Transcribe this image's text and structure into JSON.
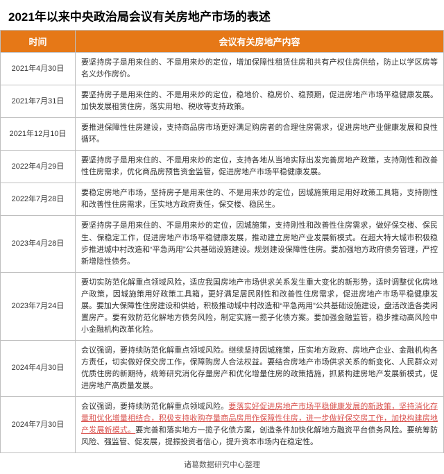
{
  "title": "2021年以来中央政治局会议有关房地产市场的表述",
  "headers": {
    "date": "时间",
    "content": "会议有关房地产内容"
  },
  "rows": [
    {
      "date": "2021年4月30日",
      "content": "要坚持房子是用来住的、不是用来炒的定位，增加保障性租赁住房和共有产权住房供给，防止以学区房等名义炒作房价。"
    },
    {
      "date": "2021年7月31日",
      "content": "要坚持房子是用来住的、不是用来炒的定位，稳地价、稳房价、稳预期，促进房地产市场平稳健康发展。加快发展租赁住房，落实用地、税收等支持政策。"
    },
    {
      "date": "2021年12月10日",
      "content": "要推进保障性住房建设，支持商品房市场更好满足购房者的合理住房需求，促进房地产业健康发展和良性循环。"
    },
    {
      "date": "2022年4月29日",
      "content": "要坚持房子是用来住的、不是用来炒的定位，支持各地从当地实际出发完善房地产政策，支持刚性和改善性住房需求，优化商品房预售资金监管，促进房地产市场平稳健康发展。"
    },
    {
      "date": "2022年7月28日",
      "content": "要稳定房地产市场，坚持房子是用来住的、不是用来炒的定位，因城施策用足用好政策工具箱，支持刚性和改善性住房需求，压实地方政府责任，保交楼、稳民生。"
    },
    {
      "date": "2023年4月28日",
      "content": "要坚持房子是用来住的、不是用来炒的定位，因城施策，支持刚性和改善性住房需求，做好保交楼、保民生、保稳定工作，促进房地产市场平稳健康发展，推动建立房地产业发展新模式。在超大特大城市积极稳步推进城中村改造和“平急两用”公共基础设施建设。规划建设保障性住房。要加强地方政府债务管理，严控新增隐性债务。"
    },
    {
      "date": "2023年7月24日",
      "content": "要切实防范化解重点领域风险，适应我国房地产市场供求关系发生重大变化的新形势，适时调整优化房地产政策，因城施策用好政策工具箱，更好满足居民刚性和改善性住房需求，促进房地产市场平稳健康发展。要加大保障性住房建设和供给，积极推动城中村改造和“平急两用”公共基础设施建设，盘活改造各类闲置房产。要有效防范化解地方债务风险，制定实施一揽子化债方案。要加强金融监管，稳步推动高风险中小金融机构改革化险。"
    },
    {
      "date": "2024年4月30日",
      "content": "会议强调，要持续防范化解重点领域风险。继续坚持因城施策，压实地方政府、房地产企业、金融机构各方责任，切实做好保交房工作，保障购房人合法权益。要结合房地产市场供求关系的新变化、人民群众对优质住房的新期待，统筹研究消化存量房产和优化增量住房的政策措施，抓紧构建房地产发展新模式，促进房地产高质量发展。"
    },
    {
      "date": "2024年7月30日",
      "content_pre": "会议强调，要持续防范化解重点领域风险。",
      "content_hl": "要落实好促进房地产市场平稳健康发展的新政策，坚持消化存量和优化增量相结合，积极支持收购存量商品房用作保障性住房，进一步做好保交房工作，加快构建房地产发展新模式。",
      "content_post": "要完善和落实地方一揽子化债方案，创造条件加快化解地方融资平台债务风险。要统筹防风险、强监管、促发展，提振投资者信心，提升资本市场内在稳定性。"
    }
  ],
  "footer": "诸葛数据研究中心整理",
  "colors": {
    "header_bg": "#e67817",
    "border": "#bfbfbf",
    "highlight": "#d9534f"
  }
}
